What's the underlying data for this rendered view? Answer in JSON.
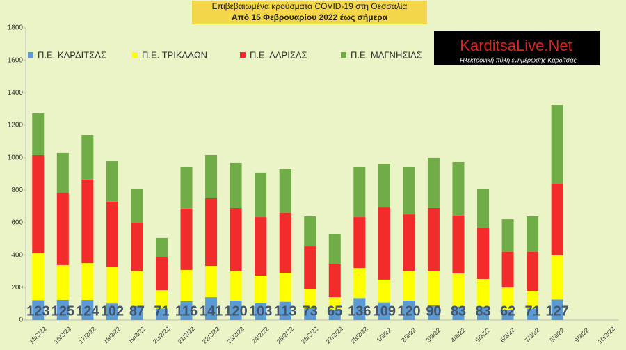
{
  "chart_data": {
    "type": "stacked_bar",
    "title": "Επιβεβαιωμένα κρούσματα COVID-19 στη Θεσσαλία",
    "subtitle": "Από 15 Φεβρουαρίου 2022 έως σήμερα",
    "logo": {
      "name": "KarditsaLive.Net",
      "tagline": "Ηλεκτρονική πύλη ενημέρωσης Καρδίτσας"
    },
    "categories": [
      "15/2/22",
      "16/2/22",
      "17/2/22",
      "18/2/22",
      "19/2/22",
      "20/2/22",
      "21/2/22",
      "22/2/22",
      "23/2/22",
      "24/2/22",
      "25/2/22",
      "26/2/22",
      "27/2/22",
      "28/2/22",
      "1/3/22",
      "2/3/22",
      "3/3/22",
      "4/3/22",
      "5/3/22",
      "6/3/22",
      "7/3/22",
      "8/3/22",
      "9/3/22",
      "10/3/22"
    ],
    "series": [
      {
        "name": "Π.Ε. ΚΑΡΔΙΤΣΑΣ",
        "color": "#5b9bd5",
        "data_labels": true,
        "values": [
          123,
          125,
          124,
          102,
          87,
          71,
          116,
          141,
          120,
          103,
          113,
          73,
          65,
          136,
          109,
          120,
          90,
          83,
          83,
          62,
          71,
          127,
          null,
          null
        ]
      },
      {
        "name": "Π.Ε. ΤΡΙΚΑΛΩΝ",
        "color": "#ffff00",
        "values": [
          288,
          214,
          227,
          224,
          213,
          113,
          193,
          193,
          180,
          171,
          178,
          116,
          76,
          185,
          140,
          184,
          214,
          204,
          170,
          139,
          109,
          272,
          null,
          null
        ]
      },
      {
        "name": "Π.Ε. ΛΑΡΙΣΑΣ",
        "color": "#f22b2b",
        "values": [
          605,
          445,
          515,
          403,
          300,
          202,
          377,
          416,
          390,
          360,
          369,
          265,
          202,
          313,
          445,
          347,
          386,
          356,
          317,
          219,
          240,
          441,
          null,
          null
        ]
      },
      {
        "name": "Π.Ε. ΜΑΓΝΗΣΙΑΣ",
        "color": "#70ad47",
        "values": [
          257,
          245,
          274,
          248,
          206,
          120,
          257,
          266,
          279,
          275,
          270,
          185,
          188,
          309,
          270,
          292,
          309,
          330,
          236,
          201,
          219,
          484,
          null,
          null
        ]
      }
    ],
    "ylim": [
      0,
      1800
    ],
    "yticks": [
      0,
      200,
      400,
      600,
      800,
      1000,
      1200,
      1400,
      1600,
      1800
    ],
    "grid": false,
    "legend": "top-left"
  }
}
